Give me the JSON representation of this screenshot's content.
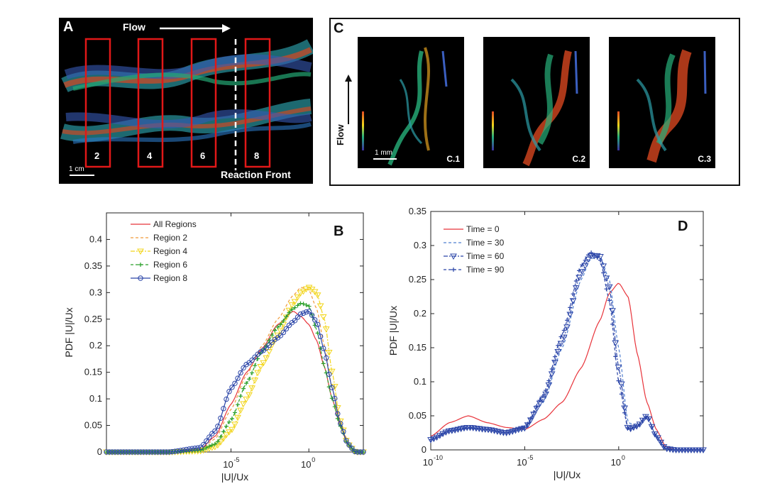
{
  "panel_a": {
    "letter": "A",
    "flow_label": "Flow",
    "scale_label": "1 cm",
    "front_label": "Reaction Front",
    "region_labels": [
      "2",
      "4",
      "6",
      "8"
    ]
  },
  "panel_c": {
    "letter": "C",
    "flow_label": "Flow",
    "scale_label": "1 mm",
    "images": [
      "C.1",
      "C.2",
      "C.3"
    ]
  },
  "colors": {
    "red": "#e8333a",
    "orange": "#f09a3a",
    "yellow": "#f2d51b",
    "green": "#2aa02a",
    "blue": "#2b45a8",
    "blue_dash": "#4f7fd0"
  },
  "chart_data": [
    {
      "type": "line",
      "panel_letter": "B",
      "xscale": "log",
      "xlabel": "|U|/Ux",
      "ylabel": "PDF |U|/Ux",
      "xlim_exp": [
        -13,
        3.5
      ],
      "ylim": [
        0,
        0.45
      ],
      "xticks": [
        {
          "exp": -5,
          "label": "10",
          "sup": "-5"
        },
        {
          "exp": 0,
          "label": "10",
          "sup": "0"
        }
      ],
      "yticks": [
        0,
        0.05,
        0.1,
        0.15,
        0.2,
        0.25,
        0.3,
        0.35,
        0.4
      ],
      "ytick_labels": [
        "0",
        "0.05",
        "0.1",
        "0.15",
        "0.2",
        "0.25",
        "0.3",
        "0.35",
        "0.4"
      ],
      "legend_position": "top-left",
      "series": [
        {
          "name": "All Regions",
          "color": "#e8333a",
          "style": "solid",
          "marker": "none",
          "x_exp": [
            -13,
            -9,
            -7,
            -6,
            -5,
            -4,
            -3,
            -2,
            -1,
            -0.5,
            0,
            0.5,
            1,
            1.5,
            2,
            2.5,
            3
          ],
          "y": [
            0,
            0,
            0.005,
            0.03,
            0.09,
            0.15,
            0.195,
            0.24,
            0.265,
            0.255,
            0.24,
            0.21,
            0.16,
            0.1,
            0.05,
            0.015,
            0
          ]
        },
        {
          "name": "Region 2",
          "color": "#f09a3a",
          "style": "dashed",
          "marker": "none",
          "x_exp": [
            -13,
            -9,
            -7,
            -6,
            -5,
            -4,
            -3,
            -2,
            -1,
            -0.5,
            0,
            0.5,
            1,
            1.5,
            2,
            2.5,
            3
          ],
          "y": [
            0,
            0,
            0.004,
            0.025,
            0.08,
            0.145,
            0.2,
            0.25,
            0.295,
            0.31,
            0.305,
            0.27,
            0.2,
            0.12,
            0.06,
            0.02,
            0
          ]
        },
        {
          "name": "Region 4",
          "color": "#f2d51b",
          "style": "dashdot",
          "marker": "triangle",
          "x_exp": [
            -13,
            -9,
            -7,
            -6,
            -5,
            -4,
            -3,
            -2,
            -1,
            -0.5,
            0,
            0.5,
            1,
            1.5,
            2,
            2.5,
            3
          ],
          "y": [
            0,
            0,
            0.002,
            0.01,
            0.04,
            0.1,
            0.165,
            0.22,
            0.28,
            0.3,
            0.31,
            0.3,
            0.25,
            0.15,
            0.06,
            0.015,
            0
          ]
        },
        {
          "name": "Region 6",
          "color": "#2aa02a",
          "style": "dashed",
          "marker": "plus",
          "x_exp": [
            -13,
            -9,
            -7,
            -6,
            -5,
            -4,
            -3,
            -2,
            -1,
            -0.5,
            0,
            0.5,
            1,
            1.5,
            2,
            2.5,
            3
          ],
          "y": [
            0,
            0,
            0.003,
            0.015,
            0.06,
            0.13,
            0.19,
            0.235,
            0.27,
            0.28,
            0.275,
            0.23,
            0.16,
            0.1,
            0.05,
            0.015,
            0
          ]
        },
        {
          "name": "Region 8",
          "color": "#2b45a8",
          "style": "solid",
          "marker": "circle",
          "x_exp": [
            -13,
            -9,
            -7,
            -6,
            -5,
            -4,
            -3,
            -2,
            -1,
            -0.5,
            0,
            0.5,
            1,
            1.5,
            2,
            2.5,
            3
          ],
          "y": [
            0,
            0,
            0.008,
            0.04,
            0.12,
            0.165,
            0.19,
            0.215,
            0.245,
            0.26,
            0.265,
            0.245,
            0.19,
            0.12,
            0.055,
            0.015,
            0
          ]
        }
      ]
    },
    {
      "type": "line",
      "panel_letter": "D",
      "xscale": "log",
      "xlabel": "|U|/Ux",
      "ylabel": "PDF |U|/Ux",
      "xlim_exp": [
        -10,
        4.5
      ],
      "ylim": [
        0,
        0.35
      ],
      "xticks": [
        {
          "exp": -10,
          "label": "10",
          "sup": "-10"
        },
        {
          "exp": -5,
          "label": "10",
          "sup": "-5"
        },
        {
          "exp": 0,
          "label": "10",
          "sup": "0"
        }
      ],
      "yticks": [
        0,
        0.05,
        0.1,
        0.15,
        0.2,
        0.25,
        0.3,
        0.35
      ],
      "ytick_labels": [
        "0",
        "0.05",
        "0.1",
        "0.15",
        "0.2",
        "0.25",
        "0.3",
        "0.35"
      ],
      "legend_position": "top-left",
      "series": [
        {
          "name": "Time = 0",
          "color": "#e8333a",
          "style": "solid",
          "marker": "none",
          "x_exp": [
            -10,
            -9,
            -8,
            -7,
            -6,
            -5,
            -4,
            -3,
            -2,
            -1,
            -0.5,
            0,
            0.5,
            1,
            1.5,
            2,
            2.5,
            3,
            4.5
          ],
          "y": [
            0.02,
            0.04,
            0.05,
            0.04,
            0.033,
            0.03,
            0.045,
            0.07,
            0.12,
            0.19,
            0.23,
            0.245,
            0.225,
            0.14,
            0.07,
            0.03,
            0.005,
            0,
            0
          ]
        },
        {
          "name": "Time = 30",
          "color": "#4f7fd0",
          "style": "dashed",
          "marker": "none",
          "x_exp": [
            -10,
            -9,
            -8,
            -7,
            -6,
            -5,
            -4,
            -3,
            -2,
            -1.5,
            -1,
            -0.5,
            0,
            0.5,
            1,
            1.5,
            2,
            2.5,
            3,
            4.5
          ],
          "y": [
            0.015,
            0.028,
            0.033,
            0.03,
            0.025,
            0.03,
            0.07,
            0.15,
            0.25,
            0.28,
            0.285,
            0.25,
            0.15,
            0.04,
            0.035,
            0.05,
            0.02,
            0.002,
            0,
            0
          ]
        },
        {
          "name": "Time = 60",
          "color": "#2b45a8",
          "style": "dashdot",
          "marker": "triangle",
          "x_exp": [
            -10,
            -9,
            -8,
            -7,
            -6,
            -5,
            -4,
            -3,
            -2,
            -1.5,
            -1,
            -0.5,
            0,
            0.5,
            1,
            1.5,
            2,
            2.5,
            3,
            4.5
          ],
          "y": [
            0.015,
            0.028,
            0.033,
            0.03,
            0.025,
            0.032,
            0.075,
            0.16,
            0.26,
            0.285,
            0.285,
            0.24,
            0.12,
            0.03,
            0.035,
            0.05,
            0.02,
            0.002,
            0,
            0
          ]
        },
        {
          "name": "Time = 90",
          "color": "#2b45a8",
          "style": "dashed",
          "marker": "plus",
          "x_exp": [
            -10,
            -9,
            -8,
            -7,
            -6,
            -5,
            -4,
            -3,
            -2,
            -1.5,
            -1,
            -0.5,
            0,
            0.5,
            1,
            1.5,
            2,
            2.5,
            3,
            4.5
          ],
          "y": [
            0.015,
            0.028,
            0.032,
            0.03,
            0.025,
            0.033,
            0.08,
            0.17,
            0.27,
            0.29,
            0.28,
            0.22,
            0.1,
            0.03,
            0.035,
            0.05,
            0.02,
            0.002,
            0,
            0
          ]
        }
      ]
    }
  ]
}
